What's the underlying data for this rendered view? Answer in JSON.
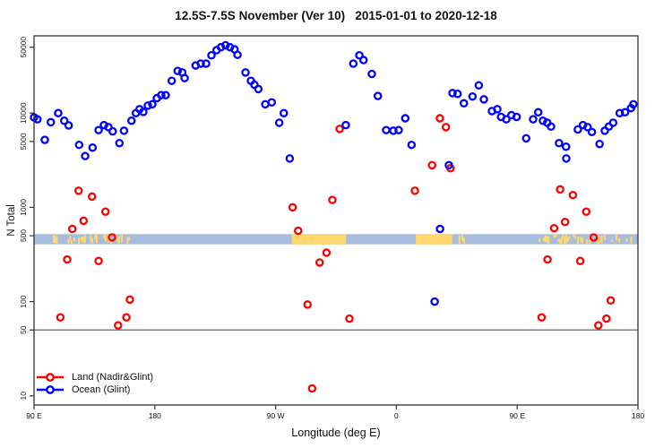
{
  "chart_data": {
    "type": "scatter",
    "title": "12.5S-7.5S November (Ver 10)   2015-01-01 to 2020-12-18",
    "xlabel": "Longitude (deg E)",
    "ylabel": "N Total",
    "x_domain": [
      90,
      540
    ],
    "x_ticks": [
      {
        "value": 90,
        "label": "90 E"
      },
      {
        "value": 180,
        "label": "180"
      },
      {
        "value": 270,
        "label": "90 W"
      },
      {
        "value": 360,
        "label": "0"
      },
      {
        "value": 450,
        "label": "90 E"
      },
      {
        "value": 540,
        "label": "180"
      }
    ],
    "y_log": true,
    "y_domain": [
      8,
      66000
    ],
    "y_ticks": [
      50000,
      10000,
      5000,
      1000,
      500,
      100,
      50,
      10
    ],
    "reference_line_y": 50,
    "grid": "off",
    "legend_position": "bottom-left",
    "map_band": {
      "value_range": [
        405,
        520
      ],
      "ocean_color": "#a8bdde",
      "land_color": "#ffd76e",
      "land_patches_deg": [
        [
          282,
          322.5
        ],
        [
          374.5,
          401.5
        ]
      ],
      "speckle_ranges_deg": [
        [
          104,
          161
        ],
        [
          403,
          411
        ],
        [
          466,
          505
        ],
        [
          509,
          537
        ]
      ]
    },
    "series": [
      {
        "name": "Land (Nadir&Glint)",
        "color": "#ff0000",
        "points": [
          [
            109.6,
            68
          ],
          [
            114.7,
            280
          ],
          [
            118.5,
            590
          ],
          [
            123.2,
            1500
          ],
          [
            126.9,
            720
          ],
          [
            133.2,
            1300
          ],
          [
            138.1,
            270
          ],
          [
            143.2,
            900
          ],
          [
            148.1,
            480
          ],
          [
            152.6,
            56
          ],
          [
            158.8,
            68
          ],
          [
            161.4,
            105
          ],
          [
            282.7,
            1000
          ],
          [
            286.8,
            565
          ],
          [
            293.8,
            93
          ],
          [
            297.2,
            12
          ],
          [
            302.8,
            260
          ],
          [
            307.9,
            330
          ],
          [
            312.3,
            1200
          ],
          [
            317.7,
            6800
          ],
          [
            325.0,
            66
          ],
          [
            373.8,
            1500
          ],
          [
            386.6,
            2800
          ],
          [
            392.4,
            8800
          ],
          [
            396.9,
            7100
          ],
          [
            400.3,
            2600
          ],
          [
            468.2,
            68
          ],
          [
            472.6,
            280
          ],
          [
            477.5,
            600
          ],
          [
            482.0,
            1550
          ],
          [
            485.7,
            700
          ],
          [
            491.5,
            1350
          ],
          [
            497.0,
            270
          ],
          [
            501.5,
            900
          ],
          [
            507.0,
            480
          ],
          [
            510.5,
            56
          ],
          [
            516.5,
            66
          ],
          [
            519.7,
            103
          ]
        ]
      },
      {
        "name": "Ocean (Glint)",
        "color": "#0000ff",
        "points": [
          [
            90,
            9000
          ],
          [
            92.5,
            8600
          ],
          [
            98,
            5200
          ],
          [
            102.5,
            8000
          ],
          [
            108,
            10000
          ],
          [
            112.5,
            8300
          ],
          [
            115.8,
            7400
          ],
          [
            123.6,
            4600
          ],
          [
            128.1,
            3500
          ],
          [
            133.6,
            4300
          ],
          [
            138.1,
            6600
          ],
          [
            142.1,
            7450
          ],
          [
            145.4,
            7100
          ],
          [
            148.6,
            6400
          ],
          [
            153.6,
            4800
          ],
          [
            157,
            6500
          ],
          [
            162.6,
            8300
          ],
          [
            165.9,
            10000
          ],
          [
            168.6,
            11000
          ],
          [
            171.4,
            10300
          ],
          [
            174.8,
            12000
          ],
          [
            178.1,
            12400
          ],
          [
            181.5,
            14400
          ],
          [
            184.8,
            15500
          ],
          [
            188.1,
            15500
          ],
          [
            192.6,
            22000
          ],
          [
            197,
            28000
          ],
          [
            200.4,
            27000
          ],
          [
            202.2,
            23500
          ],
          [
            210.4,
            32000
          ],
          [
            214.2,
            33500
          ],
          [
            218.2,
            33500
          ],
          [
            222.2,
            41000
          ],
          [
            226,
            46500
          ],
          [
            229.3,
            50000
          ],
          [
            232.7,
            52500
          ],
          [
            236,
            50000
          ],
          [
            239.4,
            47500
          ],
          [
            241.6,
            41500
          ],
          [
            247.6,
            27000
          ],
          [
            251.6,
            22000
          ],
          [
            254.2,
            20000
          ],
          [
            257.1,
            18000
          ],
          [
            262.3,
            12400
          ],
          [
            267.1,
            13000
          ],
          [
            272.7,
            7900
          ],
          [
            276.1,
            10000
          ],
          [
            280.5,
            3300
          ],
          [
            322.3,
            7450
          ],
          [
            327.9,
            33500
          ],
          [
            332.4,
            41000
          ],
          [
            335.5,
            36500
          ],
          [
            341.7,
            26000
          ],
          [
            346.2,
            15200
          ],
          [
            352.4,
            6600
          ],
          [
            357.7,
            6500
          ],
          [
            361.7,
            6600
          ],
          [
            366.6,
            8800
          ],
          [
            371.3,
            4600
          ],
          [
            388.5,
            100
          ],
          [
            392.5,
            590
          ],
          [
            399.1,
            2800
          ],
          [
            401.8,
            16300
          ],
          [
            405.6,
            16000
          ],
          [
            410.3,
            12700
          ],
          [
            416.7,
            15000
          ],
          [
            421.4,
            19700
          ],
          [
            425.2,
            14000
          ],
          [
            431.2,
            10500
          ],
          [
            435.2,
            11000
          ],
          [
            438,
            9100
          ],
          [
            441.9,
            8600
          ],
          [
            445.7,
            9500
          ],
          [
            449.6,
            9100
          ],
          [
            456.7,
            5400
          ],
          [
            461.9,
            8600
          ],
          [
            465.7,
            10200
          ],
          [
            469.2,
            8300
          ],
          [
            472.4,
            7900
          ],
          [
            475.2,
            7200
          ],
          [
            481.2,
            4800
          ],
          [
            486.4,
            4400
          ],
          [
            486.6,
            3300
          ],
          [
            495.2,
            6700
          ],
          [
            499,
            7450
          ],
          [
            502.5,
            7100
          ],
          [
            505.7,
            6300
          ],
          [
            511.4,
            4700
          ],
          [
            515.3,
            6500
          ],
          [
            518.3,
            7200
          ],
          [
            521.5,
            7900
          ],
          [
            526.4,
            10000
          ],
          [
            530.4,
            10200
          ],
          [
            534.8,
            11300
          ],
          [
            536.6,
            12400
          ]
        ]
      }
    ]
  }
}
